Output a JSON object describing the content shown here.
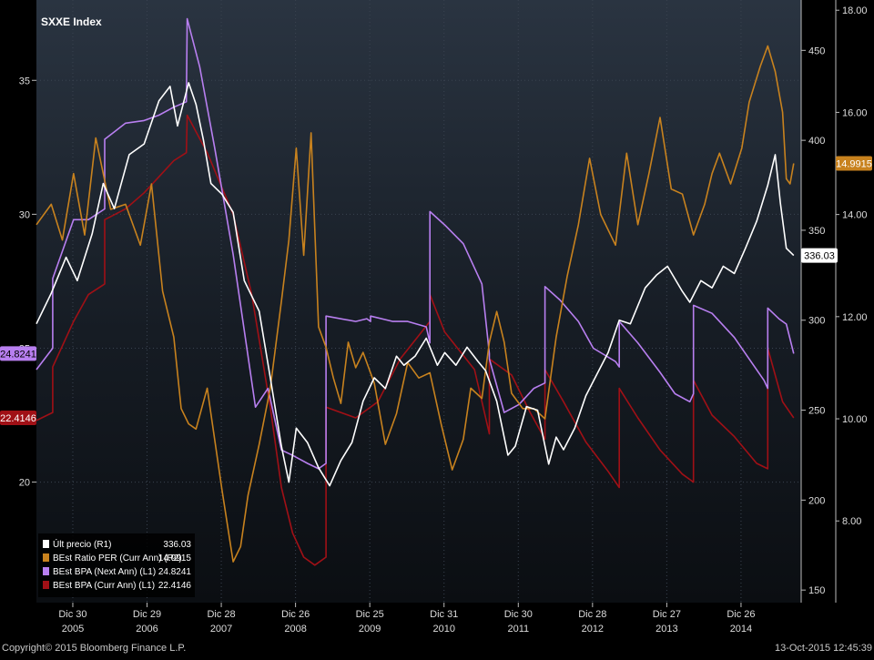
{
  "chart_data": {
    "type": "line",
    "title": "SXXE Index",
    "x_ticks": [
      {
        "x": 2005.99,
        "line1": "Dic 30",
        "line2": "2005"
      },
      {
        "x": 2006.99,
        "line1": "Dic 29",
        "line2": "2006"
      },
      {
        "x": 2007.99,
        "line1": "Dic 28",
        "line2": "2007"
      },
      {
        "x": 2008.99,
        "line1": "Dic 26",
        "line2": "2008"
      },
      {
        "x": 2009.99,
        "line1": "Dic 25",
        "line2": "2009"
      },
      {
        "x": 2010.99,
        "line1": "Dic 31",
        "line2": "2010"
      },
      {
        "x": 2011.99,
        "line1": "Dic 30",
        "line2": "2011"
      },
      {
        "x": 2012.99,
        "line1": "Dic 28",
        "line2": "2012"
      },
      {
        "x": 2013.99,
        "line1": "Dic 27",
        "line2": "2013"
      },
      {
        "x": 2014.99,
        "line1": "Dic 26",
        "line2": "2014"
      }
    ],
    "xlim": [
      2005.5,
      2015.8
    ],
    "axes": {
      "L1": {
        "lim": [
          15.5,
          38
        ],
        "ticks": [
          20,
          25,
          30,
          35
        ]
      },
      "R1": {
        "lim": [
          143,
          478
        ],
        "ticks": [
          150,
          200,
          250,
          300,
          350,
          400,
          450
        ]
      },
      "R2": {
        "lim": [
          6.4,
          18.2
        ],
        "ticks": [
          "8.00",
          "10.00",
          "12.00",
          "14.00",
          "16.00",
          "18.00"
        ]
      }
    },
    "series": [
      {
        "name": "Últ precio  (R1)",
        "axis": "R1",
        "color": "#ffffff",
        "last": "336.03",
        "x": [
          2005.5,
          2005.7,
          2005.9,
          2006.05,
          2006.25,
          2006.4,
          2006.55,
          2006.75,
          2006.95,
          2007.15,
          2007.3,
          2007.4,
          2007.55,
          2007.65,
          2007.75,
          2007.85,
          2008.0,
          2008.15,
          2008.3,
          2008.5,
          2008.65,
          2008.8,
          2008.9,
          2009.0,
          2009.15,
          2009.3,
          2009.45,
          2009.6,
          2009.75,
          2009.9,
          2010.05,
          2010.2,
          2010.35,
          2010.45,
          2010.6,
          2010.75,
          2010.9,
          2011.0,
          2011.15,
          2011.3,
          2011.45,
          2011.55,
          2011.7,
          2011.85,
          2011.95,
          2012.1,
          2012.25,
          2012.4,
          2012.5,
          2012.6,
          2012.75,
          2012.9,
          2013.05,
          2013.2,
          2013.35,
          2013.5,
          2013.7,
          2013.85,
          2014.0,
          2014.2,
          2014.3,
          2014.45,
          2014.6,
          2014.75,
          2014.9,
          2015.05,
          2015.2,
          2015.35,
          2015.45,
          2015.52,
          2015.6,
          2015.7
        ],
        "y": [
          298,
          315,
          335,
          322,
          348,
          376,
          362,
          392,
          398,
          422,
          430,
          408,
          432,
          420,
          400,
          376,
          370,
          360,
          322,
          305,
          268,
          230,
          210,
          240,
          232,
          218,
          208,
          222,
          232,
          255,
          268,
          262,
          280,
          275,
          280,
          290,
          275,
          282,
          275,
          285,
          277,
          272,
          255,
          225,
          230,
          252,
          250,
          220,
          235,
          228,
          240,
          258,
          270,
          282,
          300,
          298,
          318,
          325,
          330,
          316,
          310,
          322,
          318,
          330,
          326,
          340,
          355,
          375,
          392,
          365,
          340,
          336
        ]
      },
      {
        "name": "BEst Ratio PER (Curr Ann) (R2)",
        "axis": "R2",
        "color": "#c8821e",
        "last": "14.9915",
        "x": [
          2005.5,
          2005.7,
          2005.85,
          2006.0,
          2006.15,
          2006.3,
          2006.5,
          2006.7,
          2006.9,
          2007.05,
          2007.2,
          2007.35,
          2007.45,
          2007.55,
          2007.65,
          2007.8,
          2008.0,
          2008.15,
          2008.25,
          2008.35,
          2008.5,
          2008.65,
          2008.8,
          2008.9,
          2009.0,
          2009.1,
          2009.2,
          2009.3,
          2009.4,
          2009.5,
          2009.6,
          2009.7,
          2009.8,
          2009.9,
          2010.05,
          2010.2,
          2010.35,
          2010.5,
          2010.65,
          2010.8,
          2010.95,
          2011.1,
          2011.25,
          2011.35,
          2011.5,
          2011.6,
          2011.7,
          2011.8,
          2011.9,
          2012.05,
          2012.2,
          2012.35,
          2012.5,
          2012.65,
          2012.8,
          2012.95,
          2013.1,
          2013.3,
          2013.45,
          2013.6,
          2013.75,
          2013.9,
          2014.05,
          2014.2,
          2014.35,
          2014.5,
          2014.6,
          2014.7,
          2014.85,
          2015.0,
          2015.1,
          2015.25,
          2015.35,
          2015.45,
          2015.55,
          2015.6,
          2015.65,
          2015.7
        ],
        "y": [
          13.8,
          14.2,
          13.5,
          14.8,
          13.6,
          15.5,
          14.1,
          14.2,
          13.4,
          14.6,
          12.5,
          11.6,
          10.2,
          9.9,
          9.8,
          10.6,
          8.6,
          7.2,
          7.5,
          8.5,
          9.5,
          10.6,
          12.3,
          13.5,
          15.3,
          13.2,
          15.6,
          11.8,
          11.4,
          10.8,
          10.3,
          11.5,
          11.0,
          11.3,
          10.7,
          9.5,
          10.1,
          11.1,
          10.8,
          10.9,
          9.9,
          9.0,
          9.6,
          10.6,
          10.4,
          11.5,
          12.1,
          11.5,
          10.5,
          10.2,
          10.2,
          10.0,
          11.6,
          12.8,
          13.8,
          15.1,
          14.0,
          13.4,
          15.2,
          13.8,
          14.8,
          15.9,
          14.5,
          14.4,
          13.6,
          14.2,
          14.8,
          15.2,
          14.6,
          15.3,
          16.2,
          16.9,
          17.3,
          16.8,
          16.0,
          14.7,
          14.6,
          15.0
        ]
      },
      {
        "name": "BEst BPA (Next Ann) (L1)",
        "axis": "L1",
        "color": "#b87ff0",
        "last": "24.8241",
        "x": [
          2005.5,
          2005.72,
          2005.72,
          2006.0,
          2006.2,
          2006.42,
          2006.42,
          2006.7,
          2006.95,
          2007.15,
          2007.35,
          2007.52,
          2007.53,
          2007.7,
          2007.9,
          2008.15,
          2008.45,
          2008.62,
          2008.8,
          2008.95,
          2009.15,
          2009.3,
          2009.4,
          2009.4,
          2009.8,
          2009.95,
          2010.0,
          2010.0,
          2010.3,
          2010.5,
          2010.75,
          2010.8,
          2010.8,
          2011.0,
          2011.25,
          2011.5,
          2011.6,
          2011.6,
          2011.8,
          2012.0,
          2012.2,
          2012.35,
          2012.35,
          2012.55,
          2012.8,
          2013.0,
          2013.3,
          2013.35,
          2013.35,
          2013.6,
          2013.9,
          2014.1,
          2014.3,
          2014.35,
          2014.35,
          2014.6,
          2014.9,
          2015.1,
          2015.3,
          2015.35,
          2015.35,
          2015.5,
          2015.6,
          2015.7
        ],
        "y": [
          24.2,
          25,
          27.6,
          29.8,
          29.8,
          30.2,
          32.8,
          33.4,
          33.5,
          33.7,
          34,
          34.2,
          37.3,
          35.5,
          32.5,
          28.5,
          22.8,
          23.5,
          21.2,
          21.0,
          20.7,
          20.5,
          20.7,
          26.2,
          26.0,
          26.1,
          26.0,
          26.2,
          26.0,
          26.0,
          25.8,
          25.2,
          30.1,
          29.6,
          28.9,
          27.4,
          24.8,
          24.6,
          22.6,
          22.9,
          23.5,
          23.7,
          27.3,
          26.8,
          26.0,
          25.0,
          24.5,
          24.3,
          26.0,
          25.2,
          24.1,
          23.3,
          23.0,
          23.3,
          26.6,
          26.3,
          25.4,
          24.6,
          23.8,
          23.5,
          26.5,
          26.1,
          25.9,
          24.8
        ]
      },
      {
        "name": "BEst BPA (Curr Ann) (L1)",
        "axis": "L1",
        "color": "#a01016",
        "last": "22.4146",
        "x": [
          2005.5,
          2005.72,
          2005.72,
          2006.0,
          2006.2,
          2006.42,
          2006.42,
          2006.7,
          2006.95,
          2007.15,
          2007.35,
          2007.52,
          2007.53,
          2007.8,
          2008.15,
          2008.4,
          2008.65,
          2008.8,
          2008.95,
          2009.1,
          2009.25,
          2009.4,
          2009.4,
          2009.8,
          2010.1,
          2010.4,
          2010.8,
          2010.8,
          2011.0,
          2011.2,
          2011.4,
          2011.6,
          2011.6,
          2011.9,
          2012.15,
          2012.35,
          2012.35,
          2012.6,
          2012.9,
          2013.2,
          2013.35,
          2013.35,
          2013.6,
          2013.9,
          2014.2,
          2014.35,
          2014.35,
          2014.6,
          2014.9,
          2015.2,
          2015.35,
          2015.35,
          2015.55,
          2015.7
        ],
        "y": [
          22.3,
          22.6,
          24.3,
          26.0,
          27.0,
          27.4,
          29.8,
          30.2,
          30.8,
          31.4,
          32.0,
          32.3,
          33.7,
          32.3,
          30.0,
          27.0,
          22.8,
          19.8,
          18.1,
          17.2,
          16.9,
          17.2,
          22.8,
          22.4,
          23.0,
          24.6,
          26.0,
          27.0,
          25.6,
          24.9,
          24.2,
          21.8,
          24.6,
          24.0,
          22.6,
          21.6,
          24.2,
          23.0,
          21.5,
          20.4,
          19.8,
          23.5,
          22.4,
          21.2,
          20.3,
          20.0,
          23.8,
          22.5,
          21.7,
          20.7,
          20.5,
          25.0,
          23.0,
          22.4
        ]
      }
    ]
  },
  "legend": [
    {
      "label": "Últ precio  (R1)",
      "value": "336.03",
      "color": "#ffffff"
    },
    {
      "label": "BEst Ratio PER (Curr Ann) (R2)",
      "value": "14.9915",
      "color": "#c8821e"
    },
    {
      "label": "BEst BPA (Next Ann) (L1)",
      "value": "24.8241",
      "color": "#b87ff0"
    },
    {
      "label": "BEst BPA (Curr Ann) (L1)",
      "value": "22.4146",
      "color": "#a01016"
    }
  ],
  "footer": {
    "copyright": "Copyright© 2015 Bloomberg Finance L.P.",
    "timestamp": "13-Oct-2015 12:45:39"
  }
}
